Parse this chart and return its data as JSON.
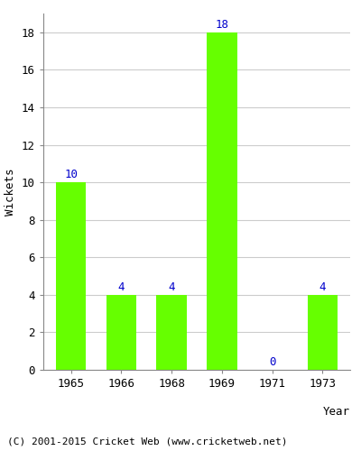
{
  "categories": [
    "1965",
    "1966",
    "1968",
    "1969",
    "1971",
    "1973"
  ],
  "values": [
    10,
    4,
    4,
    18,
    0,
    4
  ],
  "bar_color": "#66ff00",
  "bar_edge_color": "#66ff00",
  "label_color": "#0000cc",
  "ylabel": "Wickets",
  "xlabel": "Year",
  "ylim": [
    0,
    19
  ],
  "yticks": [
    0,
    2,
    4,
    6,
    8,
    10,
    12,
    14,
    16,
    18
  ],
  "footnote": "(C) 2001-2015 Cricket Web (www.cricketweb.net)",
  "background_color": "#ffffff",
  "grid_color": "#cccccc",
  "bar_width": 0.6,
  "label_fontsize": 9,
  "axis_fontsize": 9,
  "footnote_fontsize": 8
}
